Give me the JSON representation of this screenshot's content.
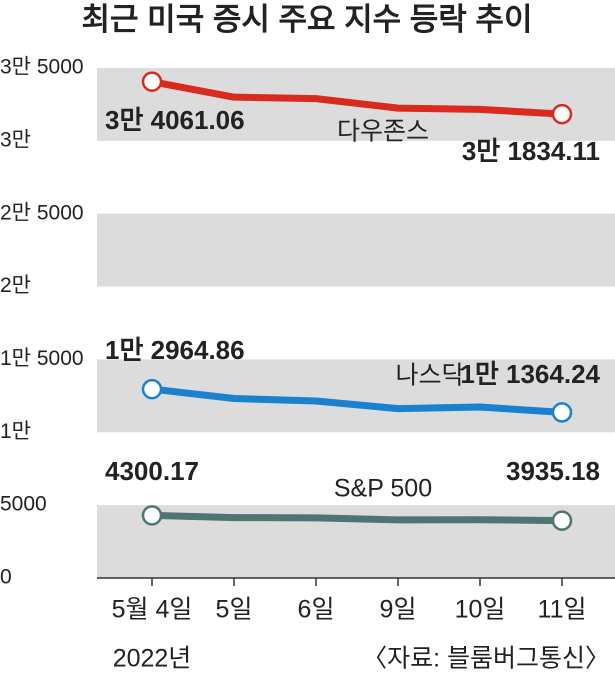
{
  "chart_data": {
    "type": "line",
    "title": "최근 미국 증시 주요 지수 등락 추이",
    "categories": [
      "5월 4일",
      "5일",
      "6일",
      "9일",
      "10일",
      "11일"
    ],
    "subtitle": "2022년",
    "source": "〈자료: 블룸버그통신〉",
    "ylim": [
      0,
      35000
    ],
    "yticks": [
      0,
      5000,
      {
        "value": 10000,
        "label": "1만"
      },
      {
        "value": 15000,
        "label": "1만 5000"
      },
      {
        "value": 20000,
        "label": "2만"
      },
      {
        "value": 25000,
        "label": "2만 5000"
      },
      {
        "value": 30000,
        "label": "3만"
      },
      {
        "value": 35000,
        "label": "3만 5000"
      }
    ],
    "band_color": "#dcdcdc",
    "series": [
      {
        "name": "다우존스",
        "color": "#d92a1f",
        "values": [
          34061.06,
          32997.97,
          32899.37,
          32245.7,
          32160.74,
          31834.11
        ],
        "value_labels": [
          "3만 4061.06",
          null,
          null,
          null,
          null,
          "3만 1834.11"
        ]
      },
      {
        "name": "나스닥",
        "color": "#1a80d0",
        "values": [
          12964.86,
          12317.69,
          12144.66,
          11623.25,
          11737.67,
          11364.24
        ],
        "value_labels": [
          "1만 2964.86",
          null,
          null,
          null,
          null,
          "1만 1364.24"
        ]
      },
      {
        "name": "S&P 500",
        "color": "#4e7571",
        "values": [
          4300.17,
          4146.87,
          4123.34,
          3991.24,
          4001.05,
          3935.18
        ],
        "value_labels": [
          "4300.17",
          null,
          null,
          null,
          null,
          "3935.18"
        ]
      }
    ]
  }
}
